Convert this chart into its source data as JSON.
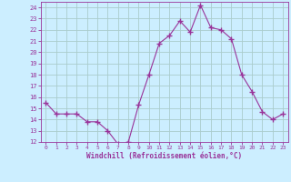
{
  "x": [
    0,
    1,
    2,
    3,
    4,
    5,
    6,
    7,
    8,
    9,
    10,
    11,
    12,
    13,
    14,
    15,
    16,
    17,
    18,
    19,
    20,
    21,
    22,
    23
  ],
  "y": [
    15.5,
    14.5,
    14.5,
    14.5,
    13.8,
    13.8,
    13.0,
    11.8,
    12.0,
    15.3,
    18.0,
    20.8,
    21.5,
    22.8,
    21.8,
    24.2,
    22.2,
    22.0,
    21.2,
    18.0,
    16.5,
    14.7,
    14.0,
    14.5
  ],
  "line_color": "#993399",
  "marker": "+",
  "marker_size": 4,
  "bg_color": "#cceeff",
  "grid_color": "#aacccc",
  "xlabel": "Windchill (Refroidissement éolien,°C)",
  "xlabel_color": "#993399",
  "xlim": [
    -0.5,
    23.5
  ],
  "ylim": [
    12,
    24.5
  ],
  "yticks": [
    12,
    13,
    14,
    15,
    16,
    17,
    18,
    19,
    20,
    21,
    22,
    23,
    24
  ],
  "xticks": [
    0,
    1,
    2,
    3,
    4,
    5,
    6,
    7,
    8,
    9,
    10,
    11,
    12,
    13,
    14,
    15,
    16,
    17,
    18,
    19,
    20,
    21,
    22,
    23
  ],
  "tick_color": "#993399",
  "font_family": "monospace"
}
